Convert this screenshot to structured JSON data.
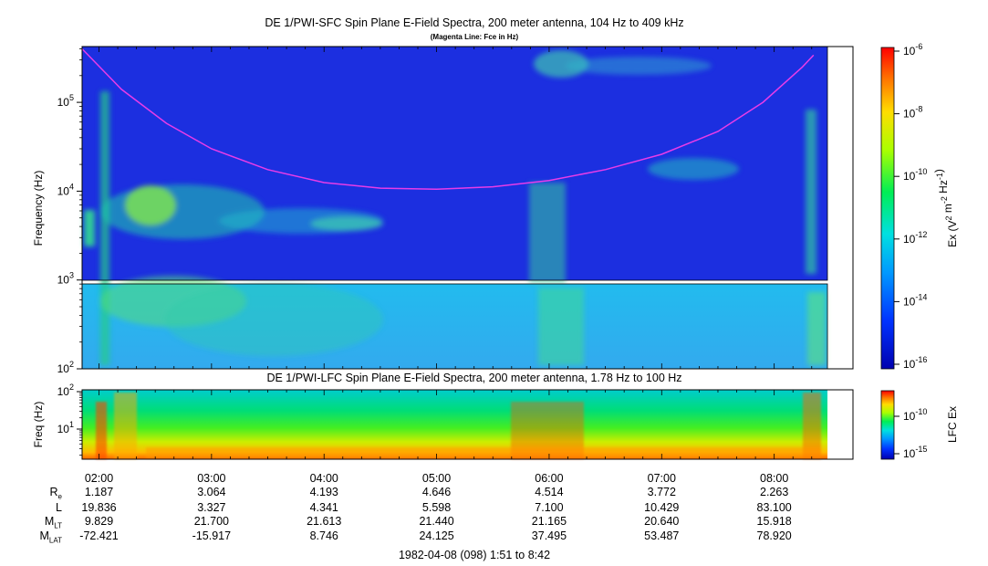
{
  "chart_data": [
    {
      "type": "heatmap",
      "title": "DE 1/PWI-SFC  Spin Plane E-Field Spectra, 200 meter antenna, 104 Hz to 409 kHz",
      "subtitle": "(Magenta Line: Fce in Hz)",
      "ylabel": "Frequency (Hz)",
      "y_scale": "log",
      "ylim": [
        100,
        409000
      ],
      "y_ticks": [
        "10^2",
        "10^3",
        "10^4",
        "10^5"
      ],
      "colorbar": {
        "label": "Ex (V^2 m^-2 Hz^-1)",
        "scale": "log",
        "range": [
          1e-16,
          1e-06
        ],
        "ticks": [
          "10^-6",
          "10^-8",
          "10^-10",
          "10^-12",
          "10^-14",
          "10^-16"
        ]
      },
      "gap_band_hz": [
        900,
        1080
      ],
      "fce_line": {
        "name": "Fce",
        "color": "#e83ce8",
        "x_hours": [
          1.85,
          2.2,
          2.6,
          3.0,
          3.5,
          4.0,
          4.5,
          5.0,
          5.5,
          6.0,
          6.5,
          7.0,
          7.5,
          7.9,
          8.25,
          8.35
        ],
        "y_hz": [
          400000,
          140000,
          58000,
          30000,
          17500,
          12500,
          10800,
          10500,
          11200,
          13200,
          17500,
          26000,
          47000,
          100000,
          250000,
          340000
        ]
      }
    },
    {
      "type": "heatmap",
      "title": "DE 1/PWI-LFC  Spin Plane E-Field Spectra, 200 meter antenna, 1.78 Hz to 100 Hz",
      "ylabel": "Freq (Hz)",
      "y_scale": "log",
      "ylim": [
        1.78,
        100
      ],
      "y_ticks": [
        "10^2",
        "10^1"
      ],
      "colorbar": {
        "label": "LFC Ex",
        "scale": "log",
        "ticks": [
          "10^-10",
          "10^-15"
        ]
      }
    }
  ],
  "time_axis": {
    "xlim_hours": [
      1.85,
      8.7
    ],
    "labels": [
      "02:00",
      "03:00",
      "04:00",
      "05:00",
      "06:00",
      "07:00",
      "08:00"
    ],
    "label_hours": [
      2,
      3,
      4,
      5,
      6,
      7,
      8
    ]
  },
  "ephemeris": [
    {
      "label": "R",
      "sub": "e",
      "values": [
        "1.187",
        "3.064",
        "4.193",
        "4.646",
        "4.514",
        "3.772",
        "2.263"
      ]
    },
    {
      "label": "L",
      "sub": "",
      "values": [
        "19.836",
        "3.327",
        "4.341",
        "5.598",
        "7.100",
        "10.429",
        "83.100"
      ]
    },
    {
      "label": "M",
      "sub": "LT",
      "values": [
        "9.829",
        "21.700",
        "21.613",
        "21.440",
        "21.165",
        "20.640",
        "15.918"
      ]
    },
    {
      "label": "M",
      "sub": "LAT",
      "values": [
        "-72.421",
        "-15.917",
        "8.746",
        "24.125",
        "37.495",
        "53.487",
        "78.920"
      ]
    }
  ],
  "footer": "1982-04-08 (098) 1:51 to 8:42"
}
